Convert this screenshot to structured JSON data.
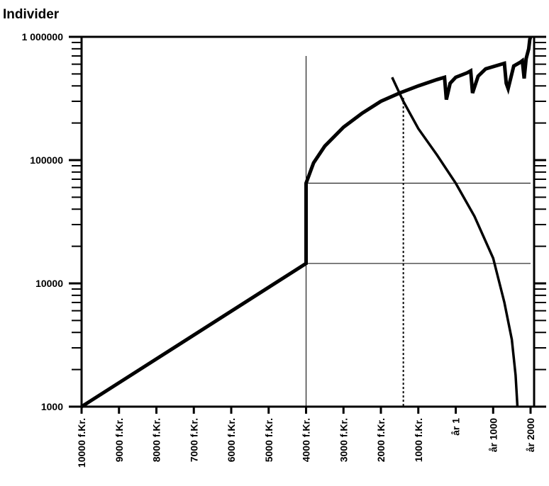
{
  "chart_data": {
    "type": "line",
    "title": "",
    "ylabel": "Individer",
    "xlabel": "",
    "y_scale": "log",
    "ylim": [
      1000,
      1000000
    ],
    "xlim": [
      -10000,
      2000
    ],
    "grid": false,
    "legend": "none",
    "y_ticks": [
      {
        "value": 1000,
        "label": "1000"
      },
      {
        "value": 10000,
        "label": "10000"
      },
      {
        "value": 100000,
        "label": "100000"
      },
      {
        "value": 1000000,
        "label": "1 000000"
      }
    ],
    "x_ticks": [
      {
        "value": -10000,
        "label": "10000 f.Kr."
      },
      {
        "value": -9000,
        "label": "9000 f.Kr."
      },
      {
        "value": -8000,
        "label": "8000 f.Kr."
      },
      {
        "value": -7000,
        "label": "7000 f.Kr."
      },
      {
        "value": -6000,
        "label": "6000 f.Kr."
      },
      {
        "value": -5000,
        "label": "5000 f.Kr."
      },
      {
        "value": -4000,
        "label": "4000 f.Kr."
      },
      {
        "value": -3000,
        "label": "3000 f.Kr."
      },
      {
        "value": -2000,
        "label": "2000 f.Kr."
      },
      {
        "value": -1000,
        "label": "1000 f.Kr."
      },
      {
        "value": 1,
        "label": "år 1"
      },
      {
        "value": 1000,
        "label": "år 1000"
      },
      {
        "value": 2000,
        "label": "år 2000"
      }
    ],
    "series": [
      {
        "style": "thick",
        "x": [
          -10000,
          -4000,
          -4000,
          -3800,
          -3500,
          -3000,
          -2500,
          -2000,
          -1500,
          -1000,
          -500,
          -300,
          -250,
          -150,
          0,
          300,
          400,
          450,
          600,
          800,
          1300,
          1350,
          1400,
          1550,
          1720,
          1780,
          1830,
          1880,
          1890,
          1950,
          1980,
          2000
        ],
        "y": [
          1000,
          14500,
          65000,
          95000,
          130000,
          185000,
          240000,
          300000,
          350000,
          400000,
          450000,
          470000,
          310000,
          420000,
          470000,
          510000,
          530000,
          350000,
          480000,
          550000,
          610000,
          420000,
          380000,
          580000,
          620000,
          640000,
          460000,
          660000,
          680000,
          800000,
          950000,
          1000000
        ]
      },
      {
        "style": "medium",
        "x": [
          -1700,
          -1400,
          -1000,
          -500,
          0,
          500,
          1000,
          1300,
          1500,
          1600,
          1650
        ],
        "y": [
          470000,
          300000,
          180000,
          110000,
          65000,
          35000,
          16000,
          7000,
          3500,
          1800,
          1000
        ]
      }
    ],
    "reference_lines": [
      {
        "type": "vertical",
        "x": -4000,
        "y_top": 700000,
        "style": "thin"
      },
      {
        "type": "vertical",
        "x": -1400,
        "y_from": 1000,
        "y_to": 320000,
        "style": "dotted"
      },
      {
        "type": "horizontal",
        "y": 65000,
        "x_from": -4000,
        "x_to": 2000,
        "style": "thin"
      },
      {
        "type": "horizontal",
        "y": 14500,
        "x_from": -4000,
        "x_to": 2000,
        "style": "thin"
      }
    ]
  }
}
